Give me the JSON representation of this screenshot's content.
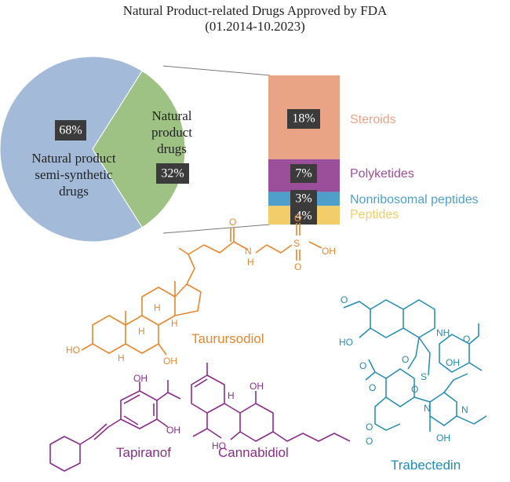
{
  "chart_data": {
    "type": "pie",
    "title": "Natural Product-related Drugs Approved by FDA",
    "subtitle": "(01.2014-10.2023)",
    "slices": [
      {
        "label_lines": [
          "Natural product",
          "semi-synthetic",
          "drugs"
        ],
        "value": 68,
        "value_label": "68%",
        "color": "#a3bbd9"
      },
      {
        "label_lines": [
          "Natural",
          "product",
          "drugs"
        ],
        "value": 32,
        "value_label": "32%",
        "color": "#9ec283"
      }
    ],
    "breakdown": {
      "type": "stacked-bar",
      "of": "Natural product drugs",
      "segments": [
        {
          "label": "Steroids",
          "value": 18,
          "value_label": "18%",
          "color": "#e8a484"
        },
        {
          "label": "Polyketides",
          "value": 7,
          "value_label": "7%",
          "color": "#9b4f9b"
        },
        {
          "label": "Nonribosomal peptides",
          "value": 3,
          "value_label": "3%",
          "color": "#4f9fca"
        },
        {
          "label": "Peptides",
          "value": 4,
          "value_label": "4%",
          "color": "#f2cd6a"
        }
      ]
    }
  },
  "molecules": [
    {
      "name": "Taurursodiol",
      "color": "#e8872e"
    },
    {
      "name": "Tapiranof",
      "color": "#8a2d8a"
    },
    {
      "name": "Cannabidiol",
      "color": "#8a2d8a"
    },
    {
      "name": "Trabectedin",
      "color": "#1f8bb6"
    }
  ],
  "atom_labels": {
    "taurursodiol": [
      "N",
      "H",
      "O",
      "S",
      "O",
      "O",
      "OH",
      "HO",
      "OH",
      "H",
      "H",
      "H",
      "H"
    ],
    "tapiranof": [
      "OH",
      "OH"
    ],
    "cannabidiol": [
      "H",
      "OH",
      "HO"
    ],
    "trabectedin": [
      "O",
      "HO",
      "NH",
      "O",
      "S",
      "O",
      "OH",
      "O",
      "O",
      "O",
      "N",
      "N",
      "OH",
      "O",
      "O"
    ]
  }
}
